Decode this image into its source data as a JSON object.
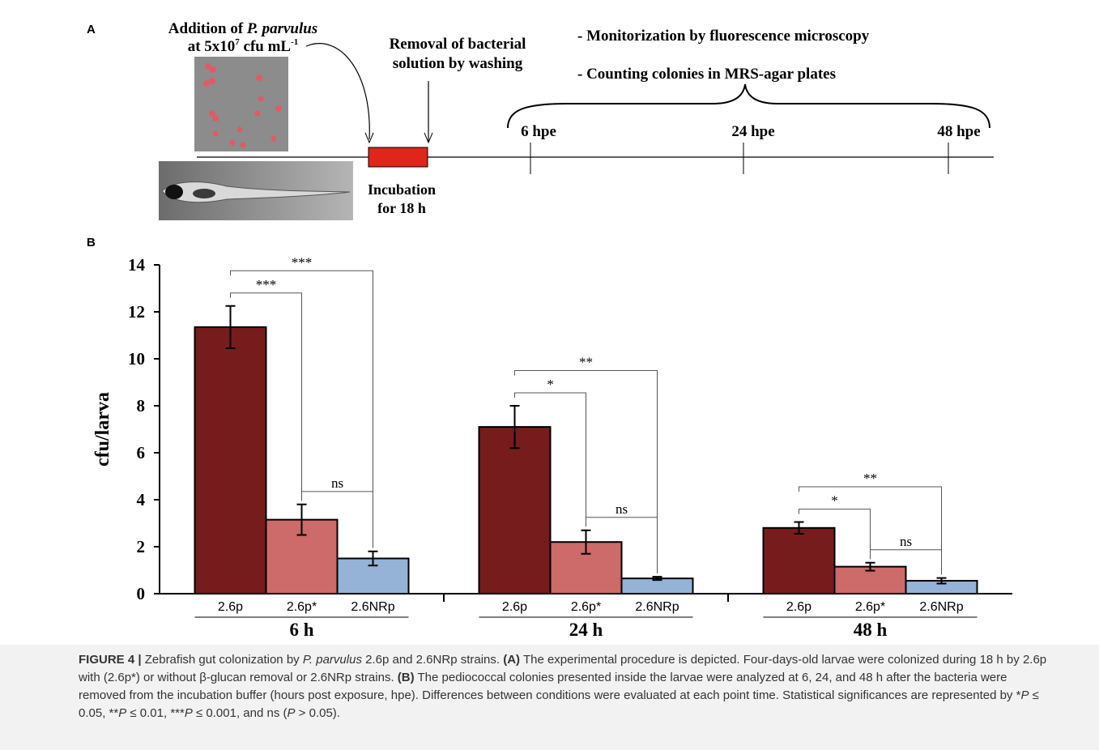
{
  "panel_labels": [
    "A",
    "B"
  ],
  "panel_a": {
    "addition": [
      "Addition of ",
      "P. parvulus"
    ],
    "dose": [
      "at 5x10",
      "7",
      " cfu mL",
      "-1"
    ],
    "removal": [
      "Removal of bacterial",
      "solution by washing"
    ],
    "incubation": [
      "Incubation",
      "for 18 h"
    ],
    "timepoints": [
      "6 hpe",
      "24 hpe",
      "48 hpe"
    ],
    "steps": [
      "- Monitorization by fluorescence microscopy",
      "- Counting colonies in MRS-agar plates"
    ]
  },
  "chart_data": {
    "type": "bar",
    "ylabel": "cfu/larva",
    "categories": [
      "6 h",
      "24 h",
      "48 h"
    ],
    "series": [
      {
        "name": "2.6p",
        "color": "#761c1c",
        "values": [
          11.35,
          7.1,
          2.8
        ],
        "errors": [
          0.9,
          0.9,
          0.25
        ]
      },
      {
        "name": "2.6p*",
        "color": "#cd6a6a",
        "values": [
          3.15,
          2.2,
          1.15
        ],
        "errors": [
          0.65,
          0.5,
          0.17
        ]
      },
      {
        "name": "2.6NRp",
        "color": "#95b3d7",
        "values": [
          1.5,
          0.65,
          0.55
        ],
        "errors": [
          0.3,
          0.07,
          0.12
        ]
      }
    ],
    "ylim": [
      0,
      14
    ],
    "yticks": [
      0,
      2,
      4,
      6,
      8,
      10,
      12,
      14
    ],
    "annotations": [
      {
        "group": 0,
        "from": 0,
        "to": 1,
        "label": "***"
      },
      {
        "group": 0,
        "from": 0,
        "to": 2,
        "label": "***"
      },
      {
        "group": 0,
        "from": 1,
        "to": 2,
        "label": "ns"
      },
      {
        "group": 1,
        "from": 0,
        "to": 1,
        "label": "*"
      },
      {
        "group": 1,
        "from": 0,
        "to": 2,
        "label": "**"
      },
      {
        "group": 1,
        "from": 1,
        "to": 2,
        "label": "ns"
      },
      {
        "group": 2,
        "from": 0,
        "to": 1,
        "label": "*"
      },
      {
        "group": 2,
        "from": 0,
        "to": 2,
        "label": "**"
      },
      {
        "group": 2,
        "from": 1,
        "to": 2,
        "label": "ns"
      }
    ]
  },
  "caption": [
    "FIGURE 4 | ",
    "Zebrafish gut colonization by ",
    "P. parvulus",
    " 2.6p and 2.6NRp strains. ",
    "(A)",
    " The experimental procedure is depicted. Four-days-old larvae were colonized during 18 h by 2.6p with (2.6p*) or without β-glucan removal or 2.6NRp strains. ",
    "(B)",
    " The pediococcal colonies presented inside the larvae were analyzed at 6, 24, and 48 h after the bacteria were removed from the incubation buffer (hours post exposure, hpe). Differences between conditions were evaluated at each point time. Statistical significances are represented by *",
    "P",
    " ≤ 0.05, **",
    "P",
    " ≤ 0.01, ***",
    "P",
    " ≤ 0.001, and ns (",
    "P",
    " > 0.05)."
  ]
}
